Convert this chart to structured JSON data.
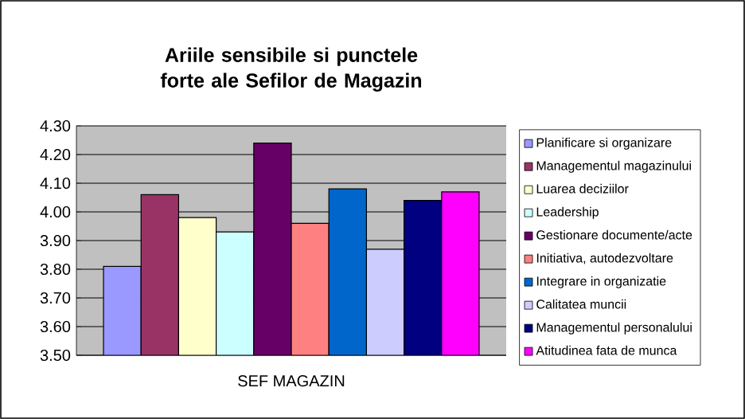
{
  "chart_data": {
    "type": "bar",
    "title": "Ariile sensibile si punctele forte ale Sefilor de Magazin",
    "categories": [
      "SEF MAGAZIN"
    ],
    "series": [
      {
        "name": "Planificare si organizare",
        "color": "#9999ff",
        "values": [
          3.81
        ]
      },
      {
        "name": "Managementul magazinului",
        "color": "#993366",
        "values": [
          4.06
        ]
      },
      {
        "name": "Luarea deciziilor",
        "color": "#ffffcc",
        "values": [
          3.98
        ]
      },
      {
        "name": "Leadership",
        "color": "#ccffff",
        "values": [
          3.93
        ]
      },
      {
        "name": "Gestionare documente/acte",
        "color": "#660066",
        "values": [
          4.24
        ]
      },
      {
        "name": "Initiativa, autodezvoltare",
        "color": "#ff8080",
        "values": [
          3.96
        ]
      },
      {
        "name": "Integrare in organizatie",
        "color": "#0066cc",
        "values": [
          4.08
        ]
      },
      {
        "name": "Calitatea muncii",
        "color": "#ccccff",
        "values": [
          3.87
        ]
      },
      {
        "name": "Managementul personalului",
        "color": "#000080",
        "values": [
          4.04
        ]
      },
      {
        "name": "Atitudinea fata de munca",
        "color": "#ff00ff",
        "values": [
          4.07
        ]
      }
    ],
    "ylim": [
      3.5,
      4.3
    ],
    "yticks": [
      {
        "value": 3.5,
        "label": "3.50"
      },
      {
        "value": 3.6,
        "label": "3.60"
      },
      {
        "value": 3.7,
        "label": "3.70"
      },
      {
        "value": 3.8,
        "label": "3.80"
      },
      {
        "value": 3.9,
        "label": "3.90"
      },
      {
        "value": 4.0,
        "label": "4.00"
      },
      {
        "value": 4.1,
        "label": "4.10"
      },
      {
        "value": 4.2,
        "label": "4.20"
      },
      {
        "value": 4.3,
        "label": "4.30"
      }
    ],
    "grid": "y",
    "legend": "right"
  }
}
